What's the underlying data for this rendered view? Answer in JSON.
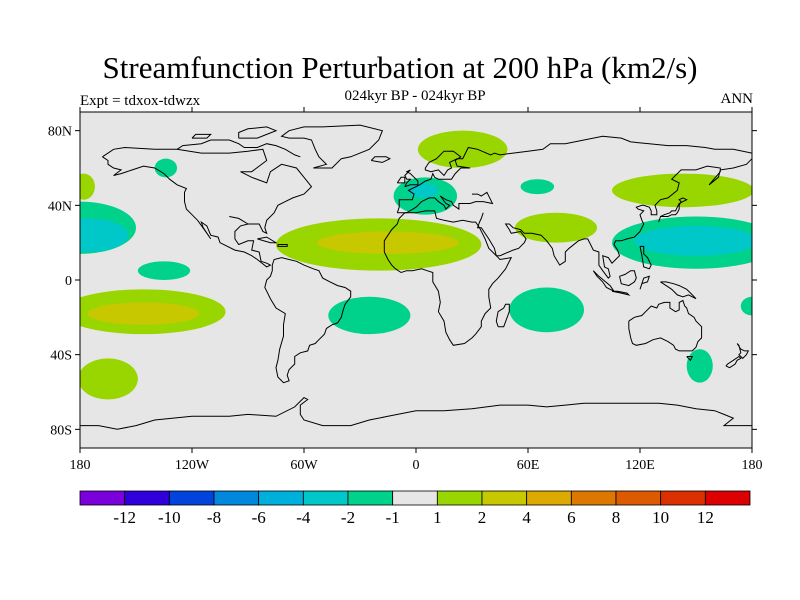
{
  "header": {
    "title": "Streamfunction Perturbation at 200 hPa (km2/s)",
    "subtitle": "024kyr BP - 024kyr BP",
    "left_label": "Expt = tdxox-tdwzx",
    "right_label": "ANN"
  },
  "map": {
    "projection": "cylindrical-equidistant",
    "lon_range": [
      -180,
      180
    ],
    "lat_range": [
      -90,
      90
    ],
    "lat_ticks": [
      {
        "value": 80,
        "label": "80N"
      },
      {
        "value": 40,
        "label": "40N"
      },
      {
        "value": 0,
        "label": "0"
      },
      {
        "value": -40,
        "label": "40S"
      },
      {
        "value": -80,
        "label": "80S"
      }
    ],
    "lon_ticks": [
      {
        "value": -180,
        "label": "180"
      },
      {
        "value": -120,
        "label": "120W"
      },
      {
        "value": -60,
        "label": "60W"
      },
      {
        "value": 0,
        "label": "0"
      },
      {
        "value": 60,
        "label": "60E"
      },
      {
        "value": 120,
        "label": "120E"
      },
      {
        "value": 180,
        "label": "180"
      }
    ],
    "background_color": "#e6e6e6",
    "features": [
      {
        "lon": -180,
        "lat": 28,
        "rlon": 30,
        "rlat": 14,
        "color": "#00d28c"
      },
      {
        "lon": -176,
        "lat": 24,
        "rlon": 22,
        "rlat": 9,
        "color": "#00c8c8"
      },
      {
        "lon": -178,
        "lat": 50,
        "rlon": 6,
        "rlat": 7,
        "color": "#99d600"
      },
      {
        "lon": -135,
        "lat": 5,
        "rlon": 14,
        "rlat": 5,
        "color": "#00d28c"
      },
      {
        "lon": -134,
        "lat": 60,
        "rlon": 6,
        "rlat": 5,
        "color": "#00d28c"
      },
      {
        "lon": -146,
        "lat": -17,
        "rlon": 44,
        "rlat": 12,
        "color": "#99d600"
      },
      {
        "lon": -146,
        "lat": -18,
        "rlon": 30,
        "rlat": 6,
        "color": "#c8c800"
      },
      {
        "lon": -165,
        "lat": -53,
        "rlon": 16,
        "rlat": 11,
        "color": "#99d600"
      },
      {
        "lon": -20,
        "lat": 19,
        "rlon": 55,
        "rlat": 14,
        "color": "#99d600"
      },
      {
        "lon": -15,
        "lat": 20,
        "rlon": 38,
        "rlat": 6,
        "color": "#c8c800"
      },
      {
        "lon": -25,
        "lat": -19,
        "rlon": 22,
        "rlat": 10,
        "color": "#00d28c"
      },
      {
        "lon": 5,
        "lat": 45,
        "rlon": 17,
        "rlat": 10,
        "color": "#00d28c"
      },
      {
        "lon": 4,
        "lat": 48,
        "rlon": 8,
        "rlat": 4,
        "color": "#00c8c8"
      },
      {
        "lon": 25,
        "lat": 70,
        "rlon": 24,
        "rlat": 10,
        "color": "#99d600"
      },
      {
        "lon": 75,
        "lat": 28,
        "rlon": 22,
        "rlat": 8,
        "color": "#99d600"
      },
      {
        "lon": 65,
        "lat": 50,
        "rlon": 9,
        "rlat": 4,
        "color": "#00d28c"
      },
      {
        "lon": 70,
        "lat": -16,
        "rlon": 20,
        "rlat": 12,
        "color": "#00d28c"
      },
      {
        "lon": 143,
        "lat": 48,
        "rlon": 38,
        "rlat": 9,
        "color": "#99d600"
      },
      {
        "lon": 150,
        "lat": 20,
        "rlon": 45,
        "rlat": 14,
        "color": "#00d28c"
      },
      {
        "lon": 150,
        "lat": 21,
        "rlon": 33,
        "rlat": 8,
        "color": "#00c8c8"
      },
      {
        "lon": 152,
        "lat": -46,
        "rlon": 7,
        "rlat": 9,
        "color": "#00d28c"
      },
      {
        "lon": 180,
        "lat": -14,
        "rlon": 6,
        "rlat": 5,
        "color": "#00d28c"
      }
    ]
  },
  "colorbar": {
    "colors": [
      "#7a00dc",
      "#3000dc",
      "#0044dc",
      "#0088dc",
      "#00b0dc",
      "#00c8c8",
      "#00d28c",
      "#e6e6e6",
      "#99d600",
      "#c8c800",
      "#dcaa00",
      "#dc7800",
      "#dc5a00",
      "#dc3000",
      "#dc0000"
    ],
    "labels": [
      "-12",
      "-10",
      "-8",
      "-6",
      "-4",
      "-2",
      "-1",
      "1",
      "2",
      "4",
      "6",
      "8",
      "10",
      "12"
    ]
  }
}
